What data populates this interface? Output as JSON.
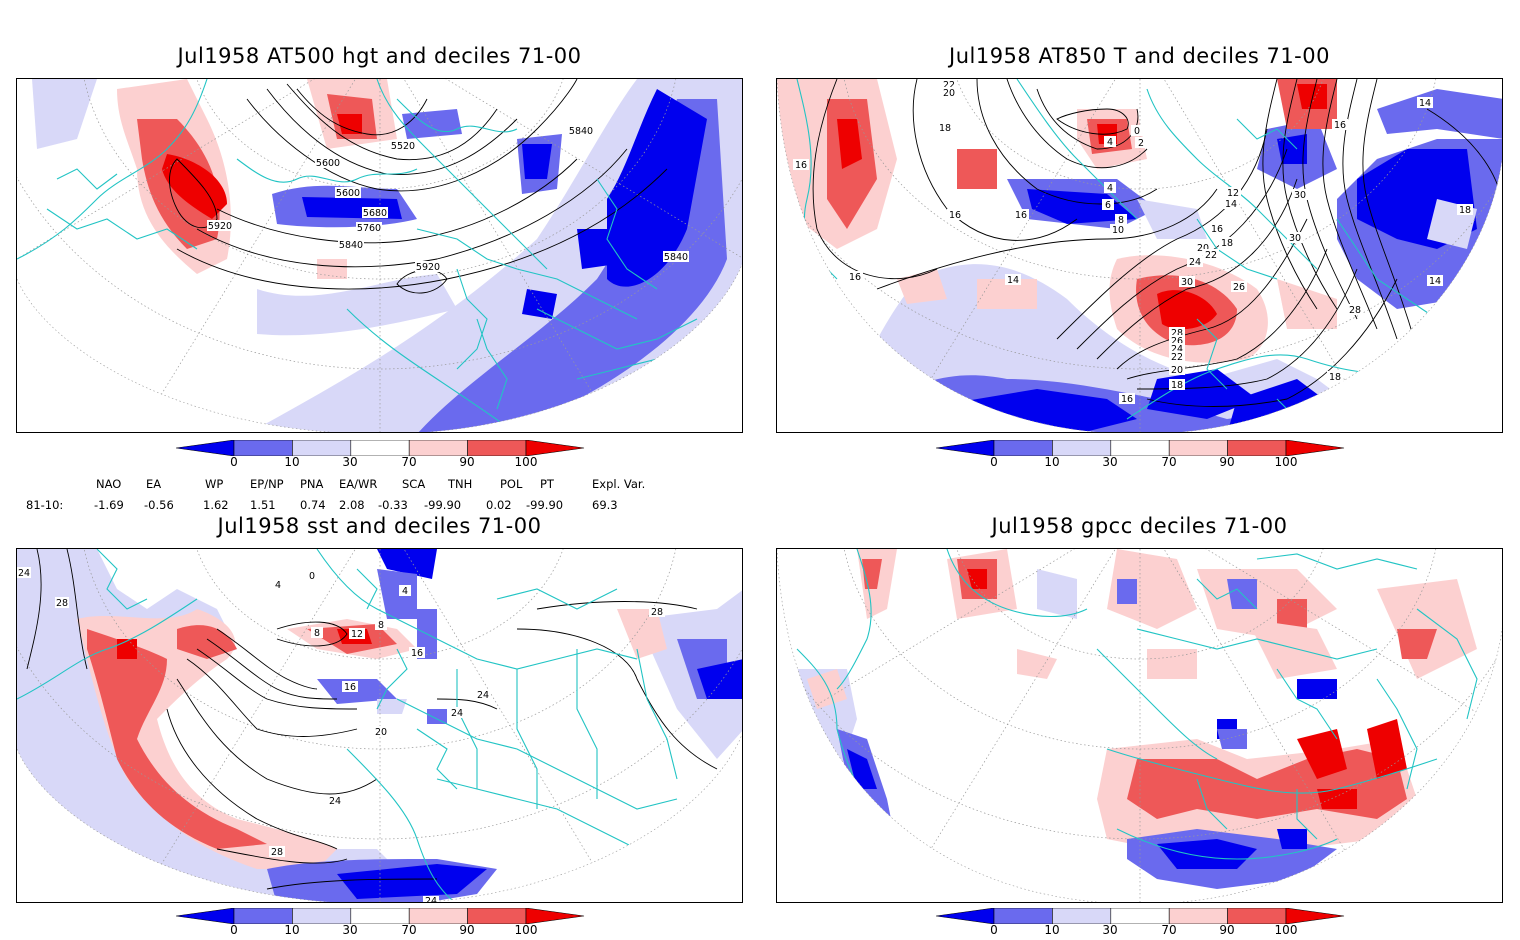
{
  "panels": [
    {
      "id": "z500",
      "title": "Jul1958 AT500 hgt and deciles 71-00"
    },
    {
      "id": "t850",
      "title": "Jul1958 AT850 T and deciles 71-00"
    },
    {
      "id": "sst",
      "title": "Jul1958 sst and deciles 71-00"
    },
    {
      "id": "gpcc",
      "title": "Jul1958 gpcc deciles 71-00"
    }
  ],
  "colorbar": {
    "labels": [
      "0",
      "10",
      "30",
      "70",
      "90",
      "100"
    ],
    "colors": [
      "#0000ee",
      "#6a6aee",
      "#d8d8f8",
      "#ffffff",
      "#fcd0d0",
      "#ee5858",
      "#ee0000"
    ]
  },
  "indices": {
    "headers": [
      "NAO",
      "EA",
      "WP",
      "EP/NP",
      "PNA",
      "EA/WR",
      "SCA",
      "TNH",
      "POL",
      "PT",
      "Expl. Var."
    ],
    "row_label": "81-10:",
    "values": [
      "-1.69",
      "-0.56",
      "1.62",
      "1.51",
      "0.74",
      "2.08",
      "-0.33",
      "-99.90",
      "0.02",
      "-99.90",
      "69.3"
    ]
  },
  "contour_labels": {
    "z500": [
      "5920",
      "5600",
      "5520",
      "5600",
      "5680",
      "5760",
      "5840",
      "5920",
      "5840",
      "5840"
    ],
    "t850": [
      "22",
      "20",
      "18",
      "16",
      "16",
      "16",
      "14",
      "4",
      "0",
      "2",
      "4",
      "6",
      "8",
      "10",
      "12",
      "14",
      "16",
      "18",
      "20",
      "22",
      "24",
      "26",
      "30",
      "28",
      "26",
      "24",
      "22",
      "20",
      "18",
      "16",
      "14",
      "16",
      "30",
      "30",
      "28",
      "18",
      "18",
      "14",
      "16"
    ],
    "sst": [
      "24",
      "28",
      "4",
      "0",
      "8",
      "12",
      "8",
      "4",
      "16",
      "16",
      "20",
      "24",
      "24",
      "24",
      "28",
      "28",
      "24"
    ]
  },
  "style": {
    "coast_color": "#22c4c4",
    "grid_color": "#999999",
    "blue_dark": "#0000ee",
    "blue_mid": "#6a6aee",
    "blue_light": "#d8d8f8",
    "red_light": "#fcd0d0",
    "red_mid": "#ee5858",
    "red_dark": "#ee0000"
  }
}
